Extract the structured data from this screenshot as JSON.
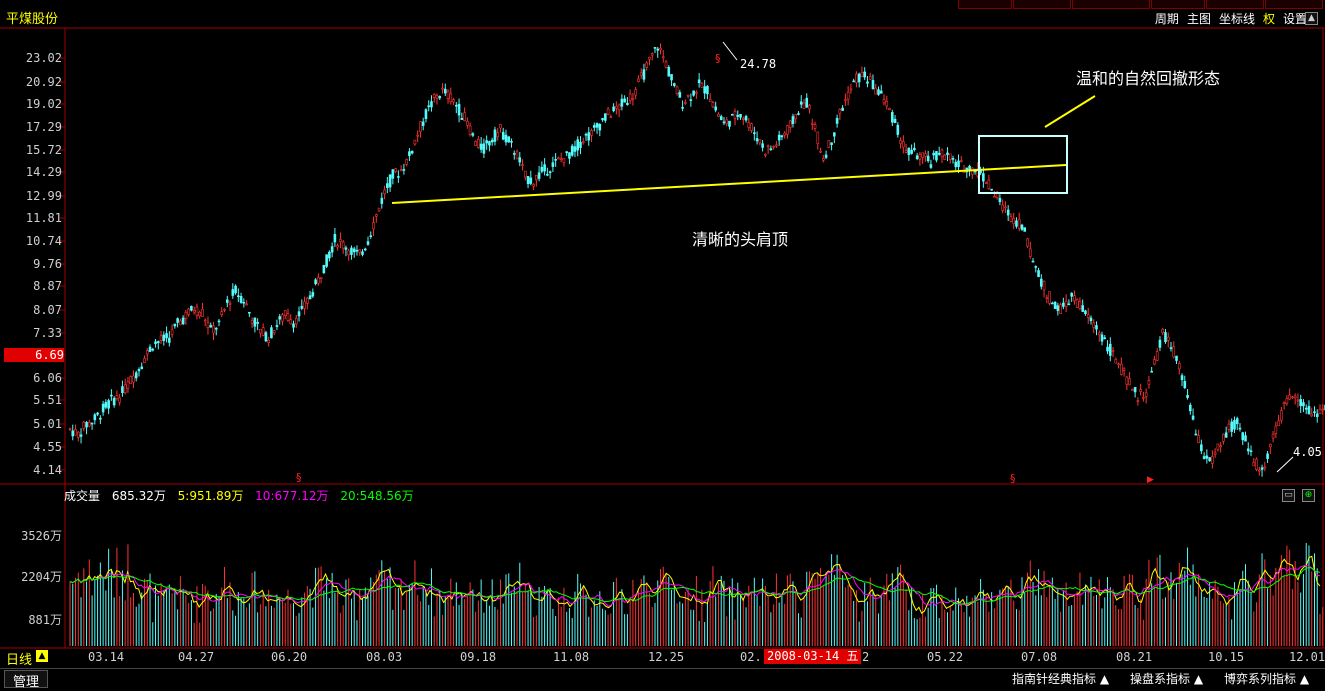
{
  "window": {
    "stock_name": "平煤股份"
  },
  "toolbar": {
    "items": [
      "周期",
      "主图",
      "坐标线",
      "权",
      "设置"
    ]
  },
  "price_axis": {
    "ticks": [
      "23.02",
      "20.92",
      "19.02",
      "17.29",
      "15.72",
      "14.29",
      "12.99",
      "11.81",
      "10.74",
      "9.76",
      "8.87",
      "8.07",
      "7.33",
      "6.69",
      "6.06",
      "5.51",
      "5.01",
      "4.55",
      "4.14"
    ],
    "current_price": "6.69"
  },
  "annotations": {
    "gentle_pullback": "温和的自然回撤形态",
    "head_shoulders": "清晰的头肩顶",
    "high_label": "24.78",
    "low_label": "4.05"
  },
  "volume": {
    "title": "成交量",
    "value": "685.32万",
    "ma5": "5:951.89万",
    "ma10": "10:677.12万",
    "ma20": "20:548.56万",
    "ticks": [
      "3526万",
      "2204万",
      "881万"
    ]
  },
  "x_axis": {
    "period": "日线",
    "ticks": [
      "03.14",
      "04.27",
      "06.20",
      "08.03",
      "09.18",
      "11.08",
      "12.25",
      "02.",
      "2",
      "05.22",
      "07.08",
      "08.21",
      "10.15",
      "12.01"
    ],
    "cursor_date": "2008-03-14 五"
  },
  "bottom": {
    "manage": "管理",
    "tabs": [
      "指南针经典指标 ▲",
      "操盘系指标 ▲",
      "博弈系列指标 ▲"
    ]
  },
  "colors": {
    "up": "#ff3232",
    "down": "#54fcfc",
    "neckline": "#ffff00",
    "ma5": "#ffff00",
    "ma10": "#ff00ff",
    "ma20": "#00ff00"
  },
  "chart_data": {
    "type": "candlestick",
    "title": "平煤股份",
    "price_path": [
      4.9,
      4.8,
      5.0,
      5.1,
      5.3,
      5.5,
      5.6,
      5.9,
      6.2,
      6.6,
      7.0,
      7.1,
      7.2,
      7.6,
      7.9,
      8.1,
      8.0,
      7.4,
      7.6,
      8.3,
      8.7,
      8.4,
      7.8,
      7.4,
      7.2,
      7.6,
      7.9,
      7.7,
      8.0,
      8.5,
      9.1,
      9.9,
      10.8,
      10.6,
      10.3,
      10.1,
      10.8,
      11.9,
      13.2,
      14.1,
      14.4,
      15.3,
      16.8,
      18.2,
      19.4,
      20.1,
      19.6,
      18.6,
      17.6,
      16.2,
      15.8,
      16.5,
      17.1,
      16.3,
      15.4,
      14.0,
      13.8,
      14.3,
      14.6,
      15.0,
      15.3,
      15.8,
      16.5,
      16.8,
      17.5,
      18.2,
      18.6,
      19.2,
      19.8,
      21.2,
      22.6,
      24.2,
      22.5,
      20.5,
      19.2,
      19.8,
      20.6,
      20.2,
      18.6,
      17.5,
      17.9,
      18.4,
      17.6,
      16.6,
      15.7,
      15.9,
      16.6,
      17.3,
      18.6,
      19.2,
      17.2,
      15.2,
      16.4,
      18.3,
      19.8,
      21.2,
      21.5,
      20.6,
      19.8,
      18.6,
      17.0,
      15.6,
      15.5,
      15.2,
      14.9,
      15.6,
      15.3,
      14.8,
      14.6,
      14.5,
      14.3,
      13.6,
      12.9,
      12.2,
      11.8,
      11.5,
      10.3,
      9.3,
      8.6,
      8.2,
      8.1,
      8.5,
      8.2,
      7.8,
      7.5,
      7.1,
      6.7,
      6.3,
      5.9,
      5.6,
      5.7,
      6.4,
      7.3,
      7.0,
      6.3,
      5.6,
      4.8,
      4.4,
      4.3,
      4.6,
      4.9,
      5.0,
      4.7,
      4.3,
      4.1,
      4.6,
      5.0,
      5.5,
      5.7,
      5.4,
      5.2,
      5.3
    ],
    "annotations": [
      "清晰的头肩顶",
      "温和的自然回撤形态"
    ],
    "high": 24.78,
    "low": 4.05
  }
}
